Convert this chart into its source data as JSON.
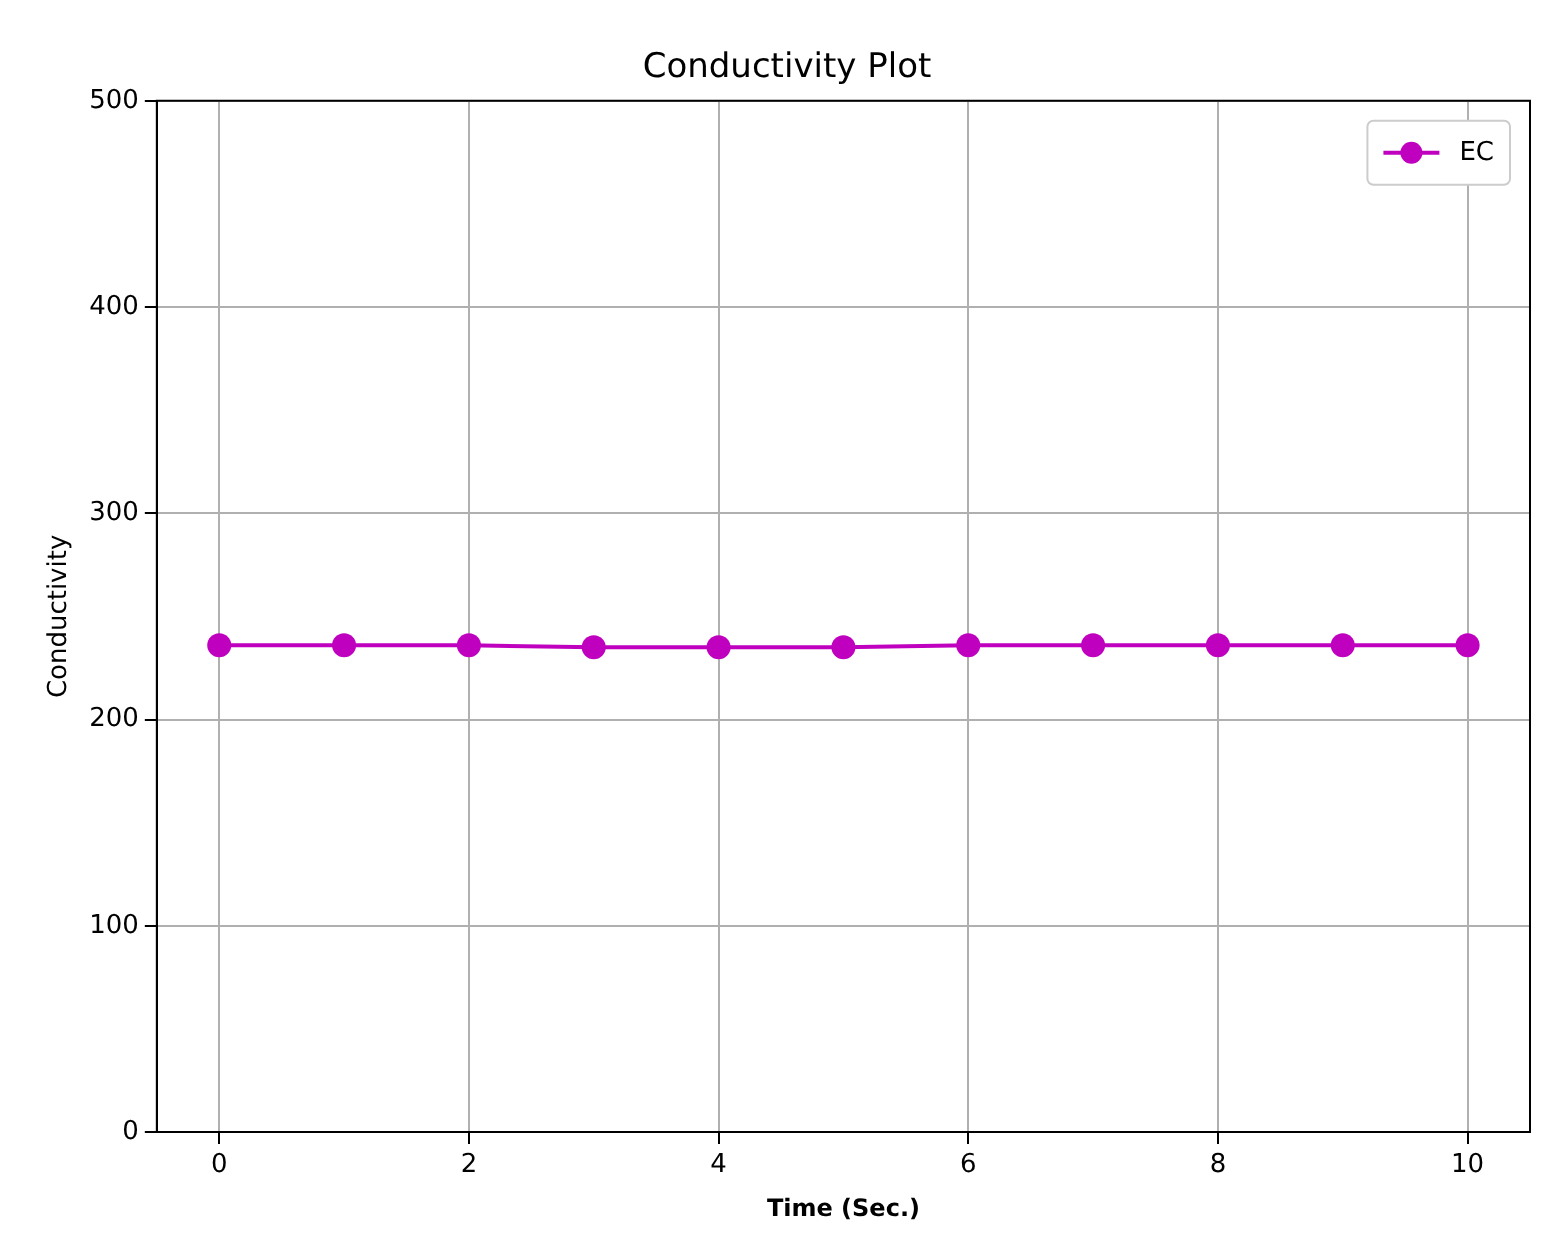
{
  "chart_data": {
    "type": "line",
    "title": "Conductivity Plot",
    "xlabel": "Time (Sec.)",
    "ylabel": "Conductivity",
    "x": [
      0,
      1,
      2,
      3,
      4,
      5,
      6,
      7,
      8,
      9,
      10
    ],
    "series": [
      {
        "name": "EC",
        "color": "#bf00bf",
        "values": [
          236,
          236,
          236,
          235,
          235,
          235,
          236,
          236,
          236,
          236,
          236
        ]
      }
    ],
    "xlim": [
      -0.5,
      10.5
    ],
    "xticks": [
      0,
      2,
      4,
      6,
      8,
      10
    ],
    "ylim": [
      0,
      500
    ],
    "yticks": [
      0,
      100,
      200,
      300,
      400,
      500
    ],
    "grid": true,
    "legend": "top right",
    "marker": "circle",
    "line_style": "solid"
  }
}
